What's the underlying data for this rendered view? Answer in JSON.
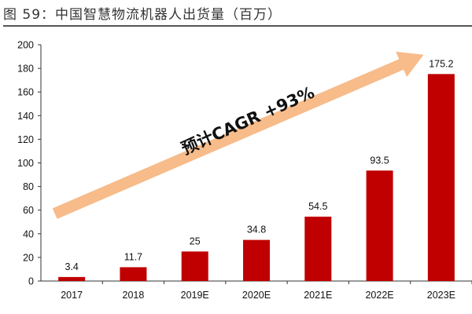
{
  "figure": {
    "title": "图 59：中国智慧物流机器人出货量（百万）"
  },
  "chart_data": {
    "type": "bar",
    "categories": [
      "2017",
      "2018",
      "2019E",
      "2020E",
      "2021E",
      "2022E",
      "2023E"
    ],
    "values": [
      3.4,
      11.7,
      25,
      34.8,
      54.5,
      93.5,
      175.2
    ],
    "data_labels": [
      "3.4",
      "11.7",
      "25",
      "34.8",
      "54.5",
      "93.5",
      "175.2"
    ],
    "title": "图 59：中国智慧物流机器人出货量（百万）",
    "xlabel": "",
    "ylabel": "",
    "ylim": [
      0,
      200
    ],
    "yticks": [
      0,
      20,
      40,
      60,
      80,
      100,
      120,
      140,
      160,
      180,
      200
    ],
    "grid": false,
    "legend": "none",
    "annotation": {
      "text": "预计CAGR +93%",
      "shape": "upward-arrow"
    },
    "colors": {
      "bar": "#C00000",
      "arrow": "#F8BC8B"
    }
  }
}
